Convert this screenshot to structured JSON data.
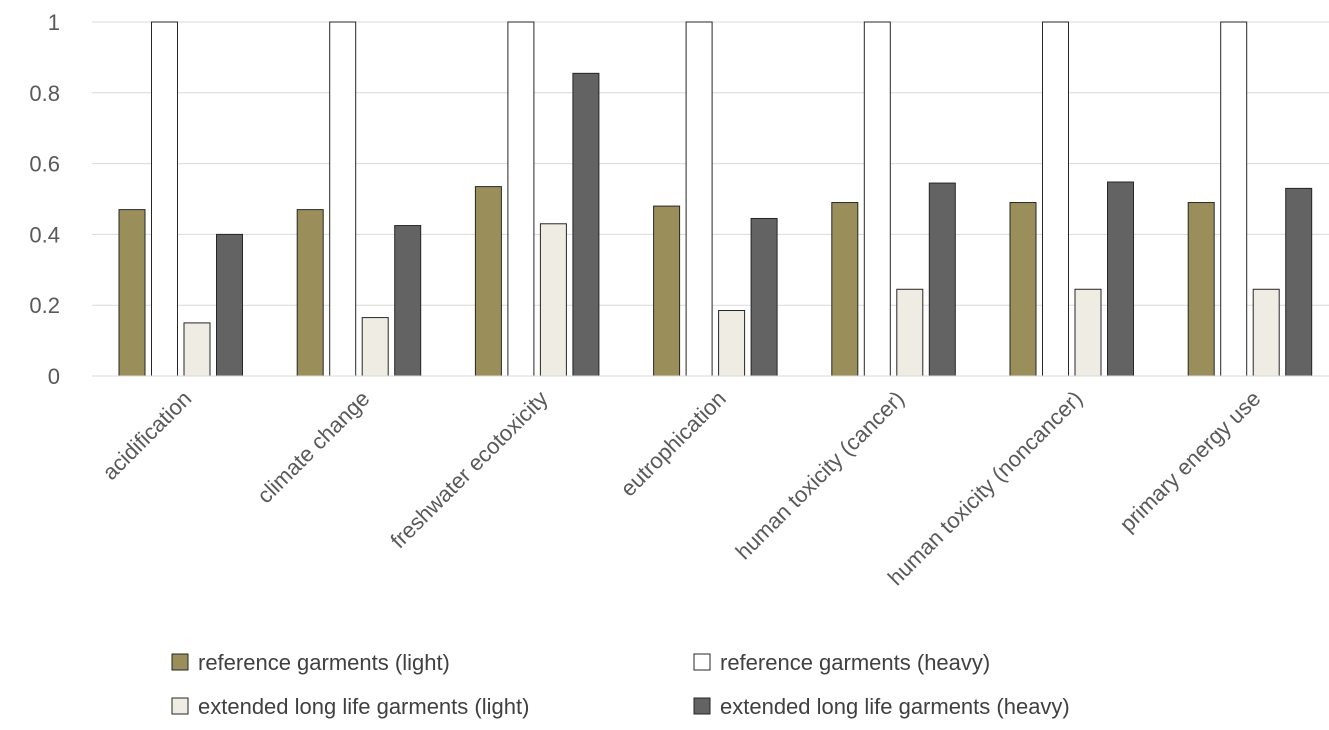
{
  "chart_data": {
    "type": "bar",
    "title": "",
    "xlabel": "",
    "ylabel": "",
    "ylim": [
      0,
      1
    ],
    "yticks": [
      "0",
      "0.2",
      "0.4",
      "0.6",
      "0.8",
      "1"
    ],
    "grid": true,
    "legend_position": "bottom",
    "categories": [
      "acidification",
      "climate change",
      "freshwater ecotoxicity",
      "eutrophication",
      "human toxicity (cancer)",
      "human toxicity (noncancer)",
      "primary energy use"
    ],
    "series": [
      {
        "name": "reference garments (light)",
        "color": "#9a8f5a",
        "values": [
          0.47,
          0.47,
          0.535,
          0.48,
          0.49,
          0.49,
          0.49
        ]
      },
      {
        "name": "reference garments (heavy)",
        "color": "#ffffff",
        "values": [
          1.0,
          1.0,
          1.0,
          1.0,
          1.0,
          1.0,
          1.0
        ]
      },
      {
        "name": "extended long life garments (light)",
        "color": "#efece4",
        "values": [
          0.15,
          0.165,
          0.43,
          0.185,
          0.245,
          0.245,
          0.245
        ]
      },
      {
        "name": "extended long life garments (heavy)",
        "color": "#636363",
        "values": [
          0.4,
          0.425,
          0.855,
          0.445,
          0.545,
          0.548,
          0.53
        ]
      }
    ]
  }
}
